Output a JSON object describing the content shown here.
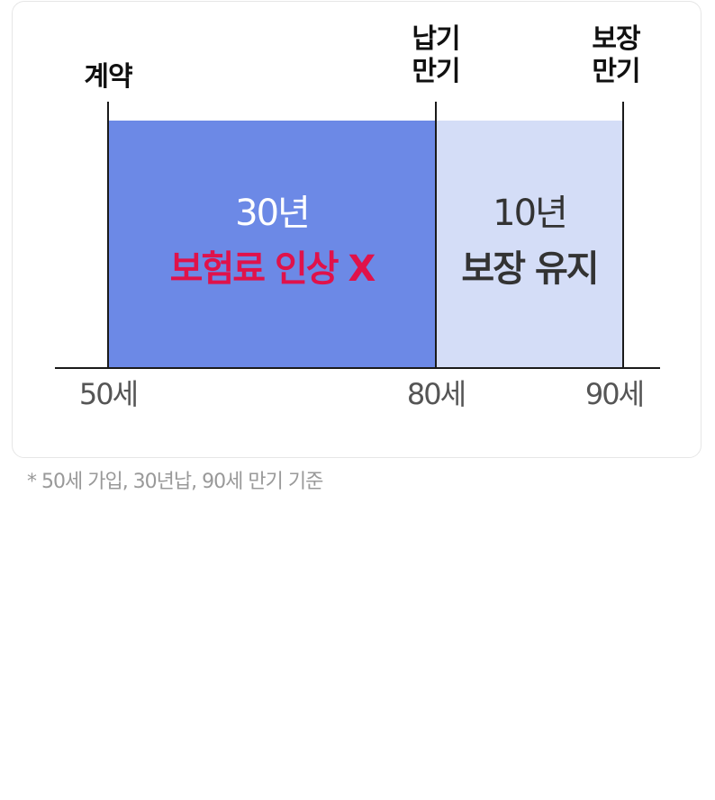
{
  "milestones": {
    "start": {
      "line1": "계약"
    },
    "payment_end": {
      "line1": "납기",
      "line2": "만기"
    },
    "coverage_end": {
      "line1": "보장",
      "line2": "만기"
    }
  },
  "periods": [
    {
      "duration": "30년",
      "note": "보험료 인상 X"
    },
    {
      "duration": "10년",
      "note": "보장 유지"
    }
  ],
  "ages": [
    "50세",
    "80세",
    "90세"
  ],
  "footnote": "* 50세 가입, 30년납, 90세 만기 기준",
  "colors": {
    "period_a_fill": "#6c89e6",
    "period_b_fill": "#d4ddf7",
    "period_a_title": "#ffffff",
    "period_a_note": "#e0124a",
    "period_b_text": "#333333",
    "line": "#1a1a1a"
  }
}
